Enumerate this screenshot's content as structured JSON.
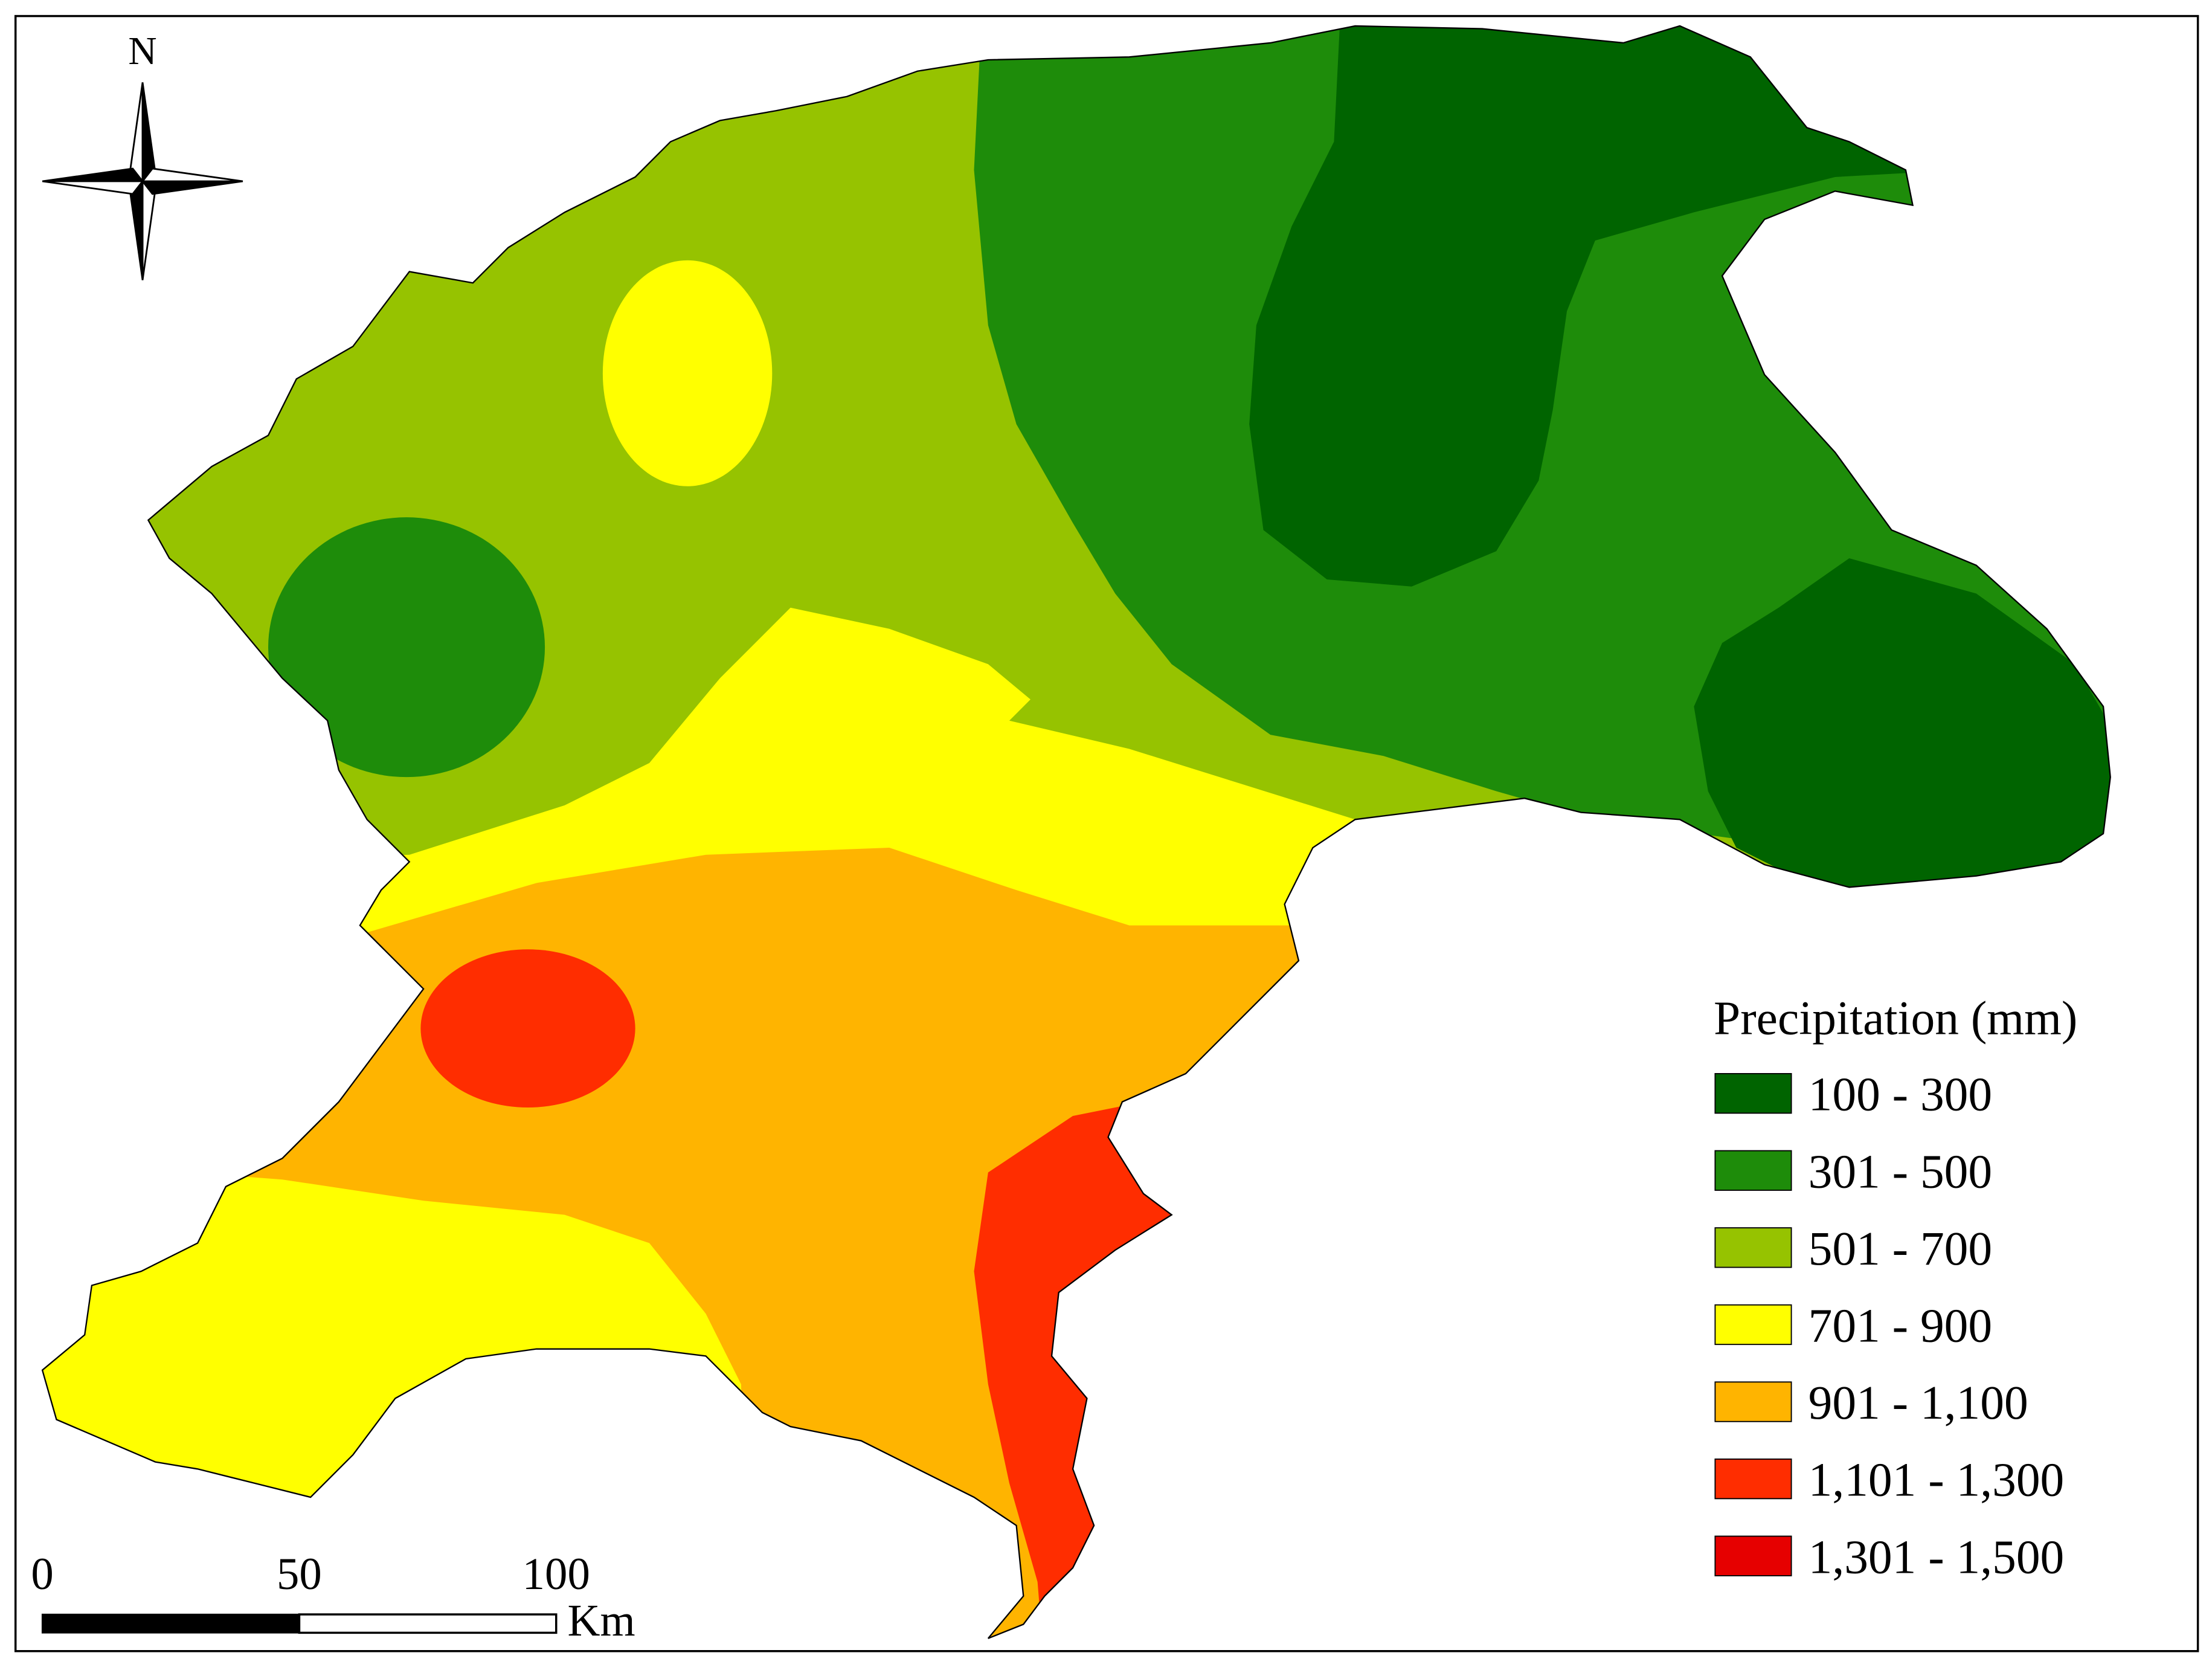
{
  "north_arrow": {
    "label": "N"
  },
  "legend": {
    "title": "Precipitation (mm)",
    "items": [
      {
        "label": "100 - 300",
        "color": "#006400"
      },
      {
        "label": "301 - 500",
        "color": "#1e8c0a"
      },
      {
        "label": "501 - 700",
        "color": "#96c300"
      },
      {
        "label": "701 - 900",
        "color": "#ffff00"
      },
      {
        "label": "901 - 1,100",
        "color": "#ffb400"
      },
      {
        "label": "1,101 - 1,300",
        "color": "#ff2d00"
      },
      {
        "label": "1,301 - 1,500",
        "color": "#e60000"
      }
    ]
  },
  "scale_bar": {
    "ticks": [
      "0",
      "50",
      "100"
    ],
    "unit": "Km"
  }
}
